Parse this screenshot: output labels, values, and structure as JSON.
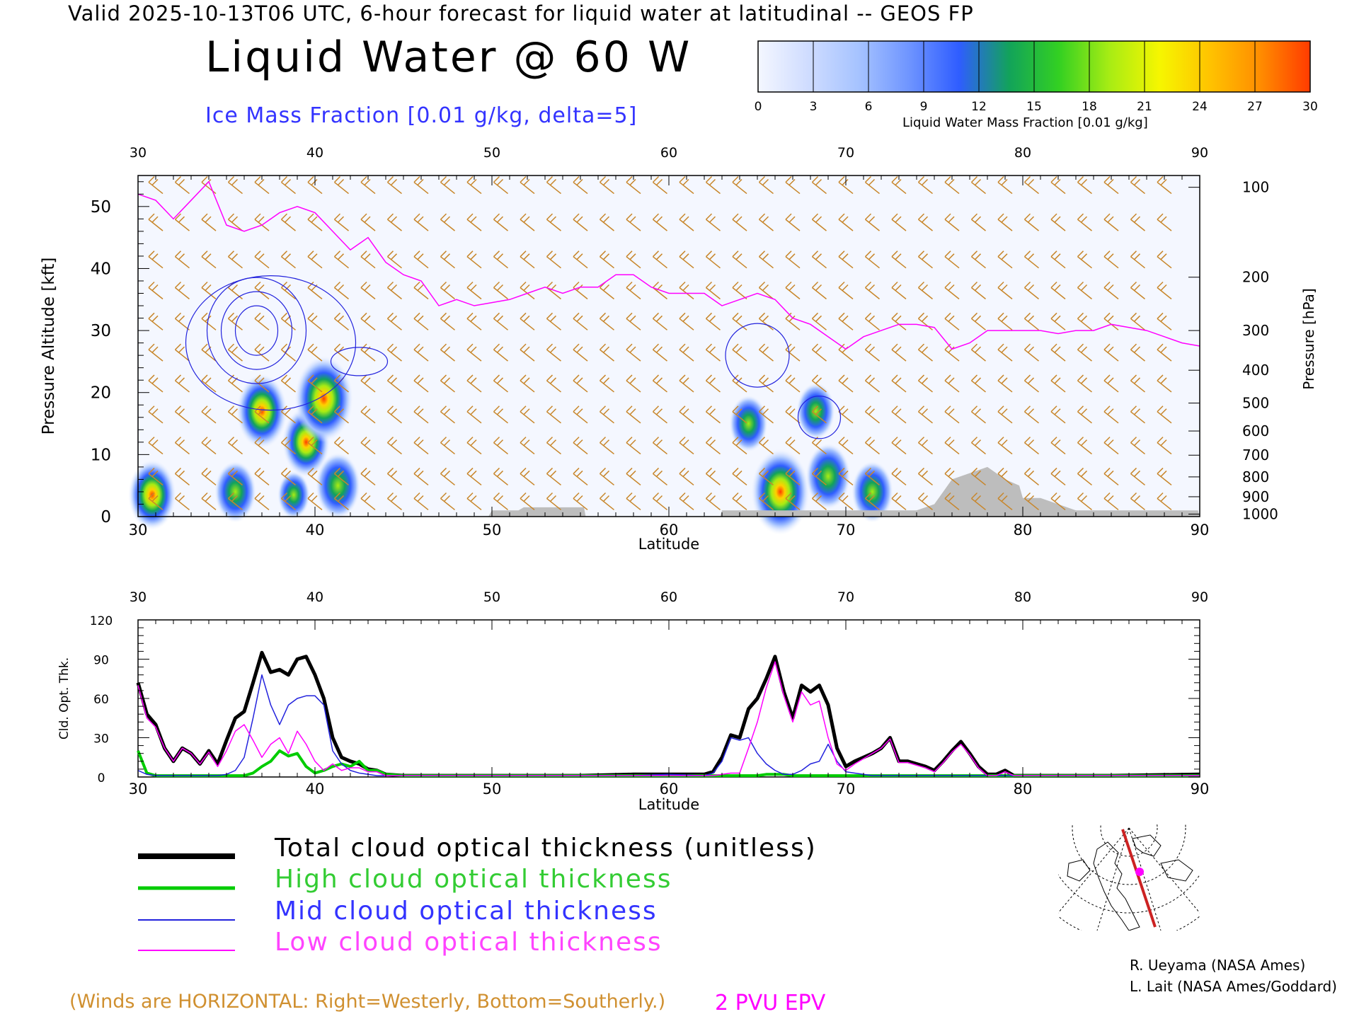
{
  "header": {
    "valid_line": "Valid 2025-10-13T06 UTC, 6-hour forecast for liquid water at latitudinal -- GEOS FP",
    "title": "Liquid Water @ 60 W",
    "ice_label": "Ice Mass Fraction [0.01 g/kg, delta=5]"
  },
  "colorbar": {
    "ticks": [
      "0",
      "3",
      "6",
      "9",
      "12",
      "15",
      "18",
      "21",
      "24",
      "27",
      "30"
    ],
    "label": "Liquid Water Mass Fraction [0.01 g/kg]",
    "colors": [
      "#f4f7ff",
      "#cfdcff",
      "#a6c3ff",
      "#6f95ff",
      "#2f5dff",
      "#12a35a",
      "#33d022",
      "#a7ec14",
      "#f6f600",
      "#ffc300",
      "#ff8d00",
      "#ff3b00"
    ]
  },
  "chart_data": [
    {
      "type": "heatmap",
      "title": "Liquid Water @ 60 W",
      "xlabel": "Latitude",
      "ylabel_left": "Pressure Altitude [kft]",
      "ylabel_right": "Pressure [hPa]",
      "xlim": [
        30,
        90
      ],
      "ylim": [
        0,
        55
      ],
      "x_ticks": [
        "30",
        "40",
        "50",
        "60",
        "70",
        "80",
        "90"
      ],
      "y_ticks": [
        "0",
        "10",
        "20",
        "30",
        "40",
        "50"
      ],
      "pressure_ticks": [
        "100",
        "200",
        "300",
        "400",
        "500",
        "600",
        "700",
        "800",
        "900",
        "1000"
      ],
      "pressure_tick_kft": [
        53.1,
        38.6,
        30.0,
        23.6,
        18.3,
        13.8,
        9.9,
        6.4,
        3.2,
        0.4
      ],
      "liquid_water_blobs": [
        {
          "lat": 30.8,
          "kft": 3.5,
          "peak": 20
        },
        {
          "lat": 35.5,
          "kft": 4.0,
          "peak": 16
        },
        {
          "lat": 37.0,
          "kft": 17.0,
          "peak": 22
        },
        {
          "lat": 38.8,
          "kft": 3.5,
          "peak": 10
        },
        {
          "lat": 39.5,
          "kft": 12.0,
          "peak": 20
        },
        {
          "lat": 40.5,
          "kft": 19.0,
          "peak": 27
        },
        {
          "lat": 41.3,
          "kft": 5.0,
          "peak": 18
        },
        {
          "lat": 64.5,
          "kft": 15.0,
          "peak": 14
        },
        {
          "lat": 66.3,
          "kft": 4.0,
          "peak": 27
        },
        {
          "lat": 68.3,
          "kft": 17.0,
          "peak": 14
        },
        {
          "lat": 69.0,
          "kft": 6.5,
          "peak": 18
        },
        {
          "lat": 71.5,
          "kft": 4.0,
          "peak": 16
        }
      ],
      "epv_2pvu_kft": [
        [
          30,
          52
        ],
        [
          31,
          51
        ],
        [
          32,
          48
        ],
        [
          33,
          51
        ],
        [
          34,
          54
        ],
        [
          35,
          47
        ],
        [
          36,
          46
        ],
        [
          37,
          47
        ],
        [
          38,
          49
        ],
        [
          39,
          50
        ],
        [
          40,
          49
        ],
        [
          41,
          46
        ],
        [
          42,
          43
        ],
        [
          43,
          45
        ],
        [
          44,
          41
        ],
        [
          45,
          39
        ],
        [
          46,
          38
        ],
        [
          47,
          34
        ],
        [
          48,
          35
        ],
        [
          49,
          34
        ],
        [
          50,
          34.5
        ],
        [
          51,
          35
        ],
        [
          52,
          36
        ],
        [
          53,
          37
        ],
        [
          54,
          36
        ],
        [
          55,
          37
        ],
        [
          56,
          37
        ],
        [
          57,
          39
        ],
        [
          58,
          39
        ],
        [
          59,
          37
        ],
        [
          60,
          36
        ],
        [
          61,
          36
        ],
        [
          62,
          36
        ],
        [
          63,
          34
        ],
        [
          64,
          35
        ],
        [
          65,
          36
        ],
        [
          66,
          35
        ],
        [
          67,
          32
        ],
        [
          68,
          31
        ],
        [
          69,
          29
        ],
        [
          70,
          27
        ],
        [
          71,
          29
        ],
        [
          72,
          30
        ],
        [
          73,
          31
        ],
        [
          74,
          31
        ],
        [
          75,
          30.5
        ],
        [
          76,
          27
        ],
        [
          77,
          28
        ],
        [
          78,
          30
        ],
        [
          79,
          30
        ],
        [
          80,
          30
        ],
        [
          81,
          30
        ],
        [
          82,
          29.5
        ],
        [
          83,
          30
        ],
        [
          84,
          30
        ],
        [
          85,
          31
        ],
        [
          86,
          30.5
        ],
        [
          87,
          30
        ],
        [
          88,
          29
        ],
        [
          89,
          28
        ],
        [
          90,
          27.5
        ]
      ],
      "terrain_kft": [
        [
          30,
          0
        ],
        [
          49.8,
          0
        ],
        [
          50,
          1
        ],
        [
          51.5,
          1
        ],
        [
          51.8,
          1.5
        ],
        [
          55.2,
          1.5
        ],
        [
          55.3,
          0
        ],
        [
          62.9,
          0
        ],
        [
          63,
          1
        ],
        [
          74,
          1
        ],
        [
          75,
          2
        ],
        [
          75.5,
          4
        ],
        [
          76,
          6
        ],
        [
          77,
          7
        ],
        [
          78,
          8
        ],
        [
          79,
          6
        ],
        [
          79.8,
          5
        ],
        [
          80,
          3
        ],
        [
          81,
          3
        ],
        [
          82,
          2
        ],
        [
          83,
          1
        ],
        [
          89.9,
          1
        ],
        [
          90,
          0
        ]
      ],
      "wind_barb_lats": [
        31,
        32.5,
        34,
        35.5,
        37,
        38.5,
        40,
        41.5,
        43,
        44.5,
        46,
        47.5,
        49,
        50.5,
        52,
        53.5,
        55,
        56.5,
        58,
        59.5,
        61,
        62.5,
        64,
        65.5,
        67,
        68.5,
        70,
        71.5,
        73,
        74.5,
        76,
        77.5,
        79,
        80.5,
        82,
        83.5,
        85,
        86.5,
        88
      ],
      "wind_barb_kft": [
        2,
        6,
        11,
        16,
        21,
        26,
        31,
        36,
        41,
        47,
        53
      ]
    },
    {
      "type": "line",
      "xlabel": "Latitude",
      "ylabel": "Cld. Opt. Thk.",
      "xlim": [
        30,
        90
      ],
      "ylim": [
        0,
        120
      ],
      "x_ticks": [
        "30",
        "40",
        "50",
        "60",
        "70",
        "80",
        "90"
      ],
      "y_ticks": [
        "0",
        "30",
        "60",
        "90",
        "120"
      ],
      "x": [
        30,
        30.5,
        31,
        31.5,
        32,
        32.5,
        33,
        33.5,
        34,
        34.5,
        35,
        35.5,
        36,
        36.5,
        37,
        37.5,
        38,
        38.5,
        39,
        39.5,
        40,
        40.5,
        41,
        41.5,
        42,
        42.5,
        43,
        43.5,
        44,
        45,
        50,
        55,
        58,
        60,
        62,
        62.5,
        63,
        63.5,
        64,
        64.5,
        65,
        65.5,
        66,
        66.5,
        67,
        67.5,
        68,
        68.5,
        69,
        69.5,
        70,
        70.5,
        71,
        71.5,
        72,
        72.5,
        73,
        73.5,
        74,
        74.5,
        75,
        75.5,
        76,
        76.5,
        77,
        77.5,
        78,
        78.5,
        79,
        79.5,
        80,
        81,
        85,
        90
      ],
      "series": [
        {
          "name": "Total cloud optical thickness (unitless)",
          "color": "#000000",
          "width": 5,
          "values": [
            72,
            48,
            40,
            22,
            12,
            22,
            18,
            10,
            20,
            10,
            28,
            45,
            50,
            72,
            95,
            80,
            82,
            78,
            90,
            92,
            78,
            60,
            30,
            15,
            12,
            10,
            6,
            5,
            2,
            1,
            1,
            1,
            2,
            2,
            2,
            4,
            15,
            32,
            30,
            52,
            60,
            75,
            92,
            65,
            45,
            70,
            65,
            70,
            55,
            22,
            8,
            12,
            15,
            18,
            22,
            30,
            12,
            12,
            10,
            8,
            5,
            12,
            20,
            27,
            18,
            8,
            2,
            2,
            5,
            1,
            1,
            1,
            1,
            2
          ]
        },
        {
          "name": "High cloud optical thickness",
          "color": "#00cc00",
          "width": 4,
          "values": [
            20,
            3,
            1,
            1,
            1,
            1,
            1,
            1,
            1,
            1,
            1,
            1,
            1,
            3,
            8,
            12,
            20,
            16,
            18,
            8,
            3,
            5,
            8,
            10,
            8,
            12,
            5,
            5,
            2,
            1,
            1,
            1,
            1,
            1,
            1,
            1,
            1,
            1,
            1,
            1,
            1,
            2,
            2,
            2,
            1,
            1,
            1,
            1,
            1,
            1,
            1,
            1,
            1,
            1,
            1,
            1,
            1,
            1,
            1,
            1,
            1,
            1,
            1,
            1,
            1,
            1,
            1,
            1,
            1,
            1,
            1,
            1,
            1,
            1
          ]
        },
        {
          "name": "Mid cloud optical thickness",
          "color": "#2222dd",
          "width": 1.5,
          "values": [
            5,
            2,
            1,
            1,
            1,
            1,
            1,
            1,
            1,
            1,
            2,
            5,
            15,
            45,
            78,
            55,
            40,
            55,
            60,
            62,
            62,
            55,
            20,
            10,
            5,
            3,
            2,
            1,
            1,
            1,
            1,
            1,
            1,
            2,
            1,
            3,
            12,
            30,
            28,
            30,
            18,
            10,
            5,
            2,
            2,
            5,
            10,
            12,
            25,
            12,
            4,
            3,
            2,
            1,
            1,
            1,
            1,
            1,
            1,
            1,
            1,
            1,
            1,
            1,
            1,
            1,
            1,
            1,
            1,
            1,
            1,
            1,
            1,
            1
          ]
        },
        {
          "name": "Low cloud optical thickness",
          "color": "#ff00ff",
          "width": 1.5,
          "values": [
            70,
            45,
            38,
            22,
            12,
            22,
            18,
            10,
            19,
            8,
            20,
            35,
            40,
            28,
            15,
            25,
            30,
            18,
            35,
            25,
            12,
            5,
            10,
            5,
            7,
            7,
            4,
            4,
            1,
            1,
            1,
            1,
            1,
            1,
            1,
            1,
            2,
            3,
            3,
            22,
            42,
            68,
            88,
            62,
            42,
            65,
            55,
            58,
            30,
            10,
            5,
            10,
            14,
            18,
            22,
            29,
            11,
            11,
            9,
            7,
            4,
            11,
            19,
            25,
            17,
            7,
            1,
            1,
            4,
            1,
            1,
            1,
            1,
            1
          ]
        }
      ]
    }
  ],
  "legend": {
    "total": "Total cloud optical thickness (unitless)",
    "high": "High cloud optical thickness",
    "mid": "Mid cloud optical thickness",
    "low": "Low cloud optical thickness"
  },
  "footer": {
    "winds_note": "(Winds are HORIZONTAL: Right=Westerly, Bottom=Southerly.)",
    "pvu_label": "2 PVU EPV",
    "credit_line1": "R. Ueyama (NASA Ames)",
    "credit_line2": "L. Lait (NASA Ames/Goddard)"
  }
}
